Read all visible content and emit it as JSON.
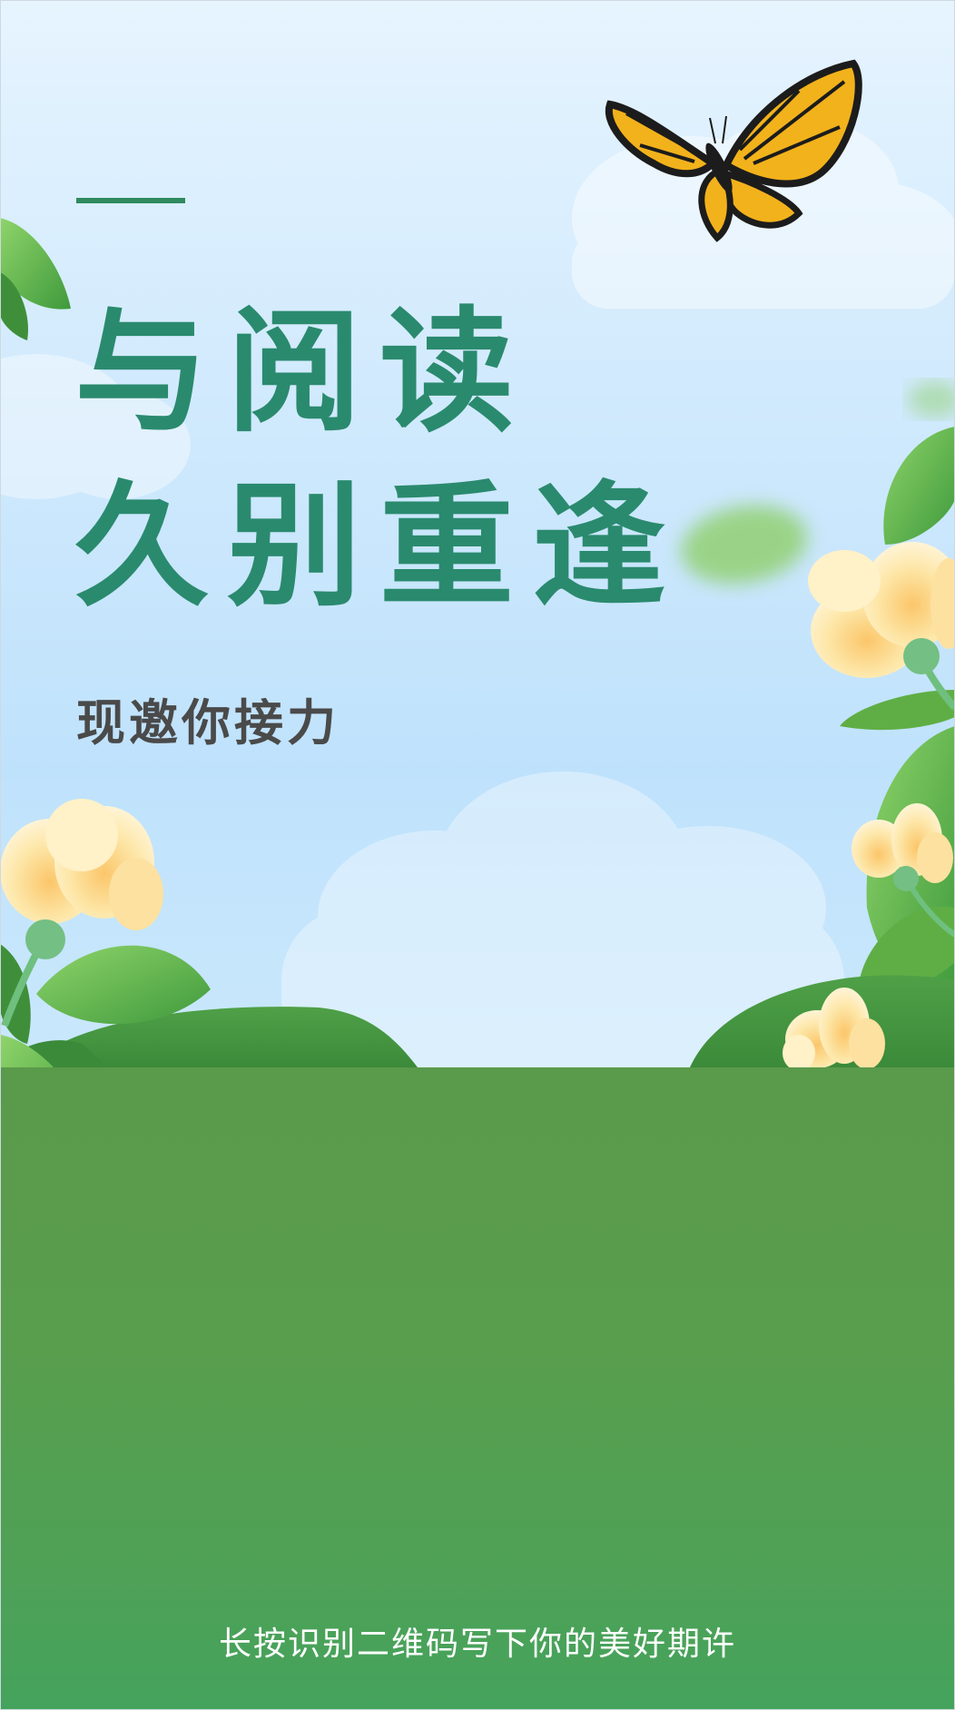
{
  "poster": {
    "title_line1": "与阅读",
    "title_line2": "久别重逢",
    "subtitle": "现邀你接力",
    "footer_caption": "长按识别二维码写下你的美好期许"
  },
  "colors": {
    "title": "#2a8a6e",
    "accent_line": "#2f8a5f",
    "subtitle": "#4a4a4a",
    "sky_top": "#e6f4fe",
    "sky_mid": "#bfe2fc",
    "ground_top": "#5a9a4b",
    "ground_bottom": "#44a35c",
    "leaf": "#6bbf4e",
    "petal": "#fde7a9",
    "butterfly_wing": "#f2b21b",
    "footer_text": "#ffffff"
  },
  "icons": {
    "butterfly": "butterfly-icon",
    "flower": "flower-icon",
    "leaf": "leaf-icon",
    "cloud": "cloud-icon"
  }
}
